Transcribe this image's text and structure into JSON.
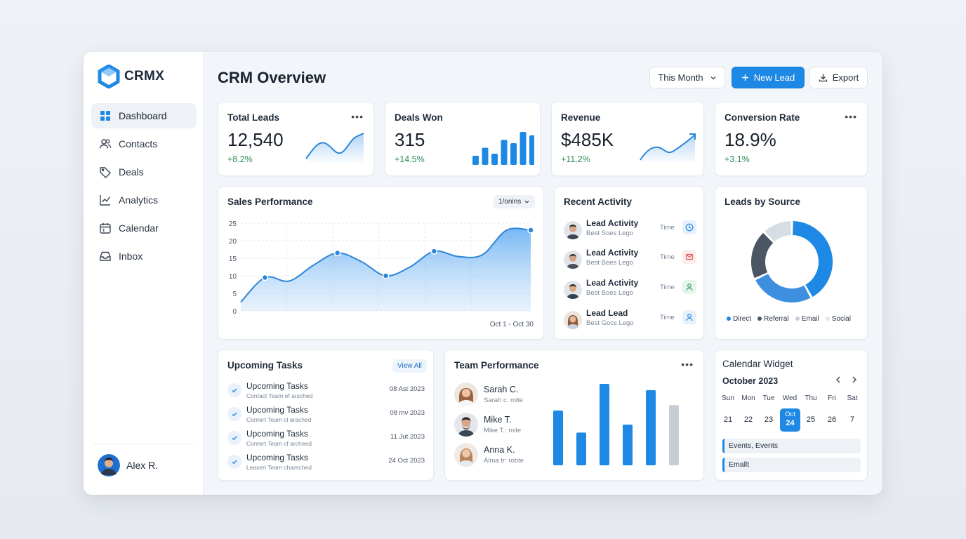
{
  "brand": {
    "name": "CRMX",
    "accent": "#1e88e5"
  },
  "sidebar": {
    "items": [
      {
        "label": "Dashboard",
        "icon": "dashboard-icon"
      },
      {
        "label": "Contacts",
        "icon": "users-icon"
      },
      {
        "label": "Deals",
        "icon": "tag-icon"
      },
      {
        "label": "Analytics",
        "icon": "line-chart-icon"
      },
      {
        "label": "Calendar",
        "icon": "calendar-icon"
      },
      {
        "label": "Inbox",
        "icon": "inbox-icon"
      }
    ],
    "user": {
      "name": "Alex R."
    }
  },
  "header": {
    "title": "CRM Overview",
    "period": "This Month",
    "new_lead": "New Lead",
    "export": "Export"
  },
  "kpis": [
    {
      "title": "Total Leads",
      "value": "12,540",
      "delta": "+8.2%"
    },
    {
      "title": "Deals Won",
      "value": "315",
      "delta": "+14.5%"
    },
    {
      "title": "Revenue",
      "value": "$485K",
      "delta": "+11.2%"
    },
    {
      "title": "Conversion Rate",
      "value": "18.9%",
      "delta": "+3.1%"
    }
  ],
  "sales": {
    "title": "Sales Performance",
    "filter": "1/onins",
    "range": "Oct 1 - Oct 30"
  },
  "activity": {
    "title": "Recent Activity",
    "items": [
      {
        "title": "Lead Activity",
        "sub": "Best Soes Lego",
        "time": "Time",
        "icon": "clock-icon"
      },
      {
        "title": "Lead Activity",
        "sub": "Best Bees Lego",
        "time": "Time",
        "icon": "mail-icon"
      },
      {
        "title": "Lead Activity",
        "sub": "Best Boes Lego",
        "time": "Time",
        "icon": "user-icon"
      },
      {
        "title": "Lead Lead",
        "sub": "Best Gocs Lego",
        "time": "Time",
        "icon": "user-icon"
      }
    ]
  },
  "sources": {
    "title": "Leads by Source",
    "legend": [
      "Direct",
      "Referral",
      "Email",
      "Social"
    ]
  },
  "tasks": {
    "title": "Upcoming Tasks",
    "view_all": "View All",
    "items": [
      {
        "title": "Upcoming Tasks",
        "sub": "Contact Team ef arsched",
        "date": "08 Ast 2023"
      },
      {
        "title": "Upcoming Tasks",
        "sub": "Contert Team cl arached",
        "date": "08 mv 2023"
      },
      {
        "title": "Upcoming Tasks",
        "sub": "Contert Team cf archeed",
        "date": "11 Jut 2023"
      },
      {
        "title": "Upcoming Tasks",
        "sub": "Leaxeri Team chareched",
        "date": "24 Oct 2023"
      }
    ]
  },
  "team": {
    "title": "Team Performance",
    "members": [
      {
        "name": "Sarah C.",
        "sub": "Sarah c. mite"
      },
      {
        "name": "Mike T.",
        "sub": "Mike T.: mite"
      },
      {
        "name": "Anna K.",
        "sub": "Alma tr: robte"
      }
    ]
  },
  "calendar": {
    "title": "Calendar Widget",
    "month": "October 2023",
    "dow": [
      "Sun",
      "Mon",
      "Tue",
      "Wed",
      "Thu",
      "Fri",
      "Sat"
    ],
    "days": [
      "21",
      "22",
      "23",
      "Oct",
      "25",
      "26",
      "7"
    ],
    "selected_day": "24",
    "events": [
      "Events, Events",
      "Emallt"
    ]
  },
  "chart_data": [
    {
      "type": "area",
      "x": [
        0,
        1,
        2,
        3,
        4,
        5,
        6,
        7,
        8,
        9,
        10,
        11,
        12
      ],
      "values": [
        2.5,
        9.5,
        8.5,
        13,
        16.5,
        14,
        10,
        12.5,
        17,
        15.5,
        16,
        23,
        23
      ],
      "markers": [
        1,
        4,
        6,
        8,
        12
      ],
      "ylim": [
        0,
        25
      ],
      "yticks": [
        "0",
        "5",
        "10",
        "15",
        "20",
        "25"
      ]
    },
    {
      "type": "pie",
      "labels": [
        "Direct",
        "Referral",
        "Email",
        "Social"
      ],
      "values": [
        42,
        26,
        20,
        12
      ],
      "colors": [
        "#1e88e5",
        "#3f8fe0",
        "#4b5563",
        "#d7dde5"
      ]
    },
    {
      "type": "bar",
      "values": [
        28,
        52,
        34,
        76,
        66,
        100,
        90
      ],
      "colors": [
        "#1e88e5",
        "#1e88e5",
        "#1e88e5",
        "#1e88e5",
        "#1e88e5",
        "#1e88e5",
        "#1e88e5"
      ]
    },
    {
      "type": "bar",
      "values": [
        62,
        37,
        92,
        46,
        85,
        68
      ],
      "colors": [
        "#1e88e5",
        "#1e88e5",
        "#1e88e5",
        "#1e88e5",
        "#1e88e5",
        "#c5ccd6"
      ]
    }
  ]
}
